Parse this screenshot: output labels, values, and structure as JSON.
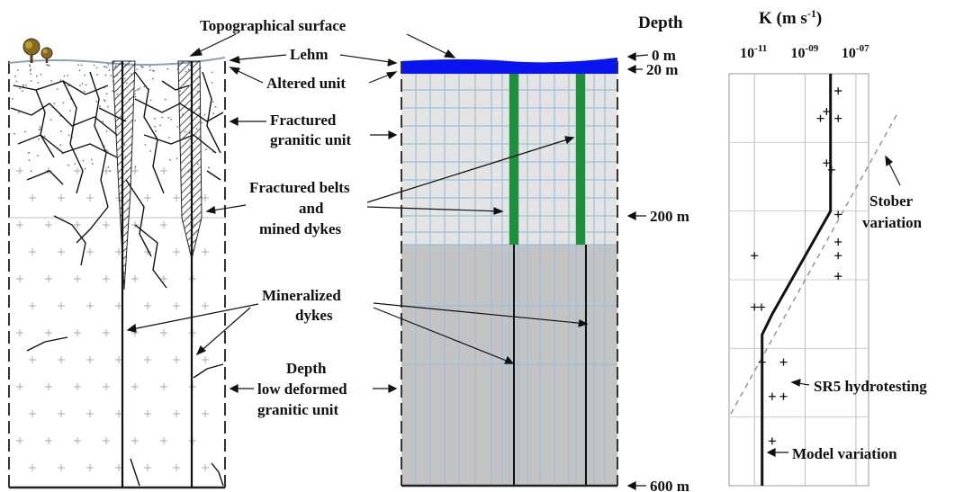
{
  "labels": {
    "topo_surface": "Topographical surface",
    "lehm": "Lehm",
    "altered_unit": "Altered unit",
    "fractured_line1": "Fractured",
    "fractured_line2": "granitic unit",
    "belts_line1": "Fractured belts",
    "belts_line2": "and",
    "belts_line3": "mined dykes",
    "mineralized_line1": "Mineralized",
    "mineralized_line2": "dykes",
    "depth_unit_line1": "Depth",
    "depth_unit_line2": "low deformed",
    "depth_unit_line3": "granitic unit"
  },
  "depth_axis": {
    "title": "Depth",
    "ticks": [
      "0 m",
      "20 m",
      "200 m",
      "600 m"
    ]
  },
  "k_plot": {
    "title_main": "K (m s",
    "title_sup": "-1",
    "title_close": ")",
    "tick_base": "10",
    "tick_exponents": [
      "-11",
      "-09",
      "-07"
    ],
    "stober_line1": "Stober",
    "stober_line2": "variation",
    "hydrotest_label": "SR5  hydrotesting",
    "model_label": "Model  variation"
  },
  "colors": {
    "surface_blue": "#0a14f0",
    "dyke_green": "#1e8f3a",
    "mesh_line": "#9bbfd8",
    "upper_zone": "#e4e4e4",
    "lower_zone": "#c3c3c3"
  },
  "chart_data": {
    "type": "scatter",
    "x_scale": "log",
    "y_inverted": true,
    "xlabel": "K (m s-1)",
    "ylabel": "Depth",
    "x_ticks": [
      1e-11,
      1e-09,
      1e-07
    ],
    "series": [
      {
        "name": "SR5 hydrotesting",
        "marker": "+",
        "points": [
          {
            "x": 2e-08,
            "y": 25
          },
          {
            "x": 4e-09,
            "y": 65
          },
          {
            "x": 7e-09,
            "y": 55
          },
          {
            "x": 2e-08,
            "y": 65
          },
          {
            "x": 7e-09,
            "y": 130
          },
          {
            "x": 1.1e-08,
            "y": 140
          },
          {
            "x": 2e-08,
            "y": 205
          },
          {
            "x": 1e-11,
            "y": 265
          },
          {
            "x": 2e-08,
            "y": 245
          },
          {
            "x": 2e-08,
            "y": 265
          },
          {
            "x": 2e-08,
            "y": 295
          },
          {
            "x": 1e-11,
            "y": 340
          },
          {
            "x": 1.9e-11,
            "y": 340
          },
          {
            "x": 2e-11,
            "y": 420
          },
          {
            "x": 1.4e-10,
            "y": 420
          },
          {
            "x": 5e-11,
            "y": 470
          },
          {
            "x": 1.4e-10,
            "y": 470
          },
          {
            "x": 5e-11,
            "y": 535
          }
        ]
      },
      {
        "name": "Model variation",
        "line": true,
        "points": [
          {
            "x": 1e-08,
            "y": 0
          },
          {
            "x": 1e-08,
            "y": 200
          },
          {
            "x": 5e-11,
            "y": 350
          },
          {
            "x": 2e-11,
            "y": 380
          },
          {
            "x": 2e-11,
            "y": 600
          }
        ]
      },
      {
        "name": "Stober variation",
        "dashed": true,
        "points": [
          {
            "x": 4e-06,
            "y": 60
          },
          {
            "x": 1e-12,
            "y": 500
          }
        ]
      }
    ]
  }
}
